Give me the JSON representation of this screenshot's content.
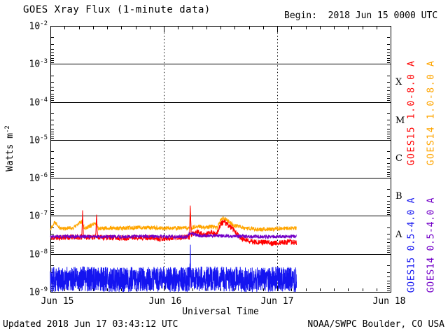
{
  "title": "GOES Xray Flux (1-minute data)",
  "begin_label": "Begin:  2018 Jun 15 0000 UTC",
  "footer": {
    "updated": "Updated 2018 Jun 17 03:43:12 UTC",
    "credit": "NOAA/SWPC Boulder, CO USA"
  },
  "chart_data": {
    "type": "line",
    "title": "GOES Xray Flux (1-minute data)",
    "xlabel": "Universal Time",
    "ylabel": {
      "text": "Watts m",
      "exponent": "-2"
    },
    "x_axis": {
      "range_days": [
        0,
        3
      ],
      "minor_tick_hours": 3,
      "ticks": [
        {
          "t": 0,
          "label": "Jun 15",
          "dx": 10
        },
        {
          "t": 1,
          "label": "Jun 16",
          "dx": 2
        },
        {
          "t": 2,
          "label": "Jun 17",
          "dx": 0
        },
        {
          "t": 3,
          "label": "Jun 18",
          "dx": -2
        }
      ],
      "gridline_ts": [
        1,
        2
      ]
    },
    "y_axis": {
      "log_range": [
        -9,
        -2
      ],
      "tick_exponents": [
        -2,
        -3,
        -4,
        -5,
        -6,
        -7,
        -8,
        -9
      ],
      "gridline_exponents": [
        -3,
        -4,
        -5,
        -6,
        -7,
        -8
      ]
    },
    "flare_classes": [
      {
        "label": "X",
        "upper_exp": -3
      },
      {
        "label": "M",
        "upper_exp": -4
      },
      {
        "label": "C",
        "upper_exp": -5
      },
      {
        "label": "B",
        "upper_exp": -6
      },
      {
        "label": "A",
        "upper_exp": -7
      }
    ],
    "series": [
      {
        "name": "GOES14 1.0-8.0 A",
        "key": "goes14-long",
        "color": "#ffa500",
        "seed": 22,
        "noise_log": 0.055,
        "samples": 1200,
        "t_end": 2.17,
        "envelope_log10": [
          [
            0,
            -7.35
          ],
          [
            0.04,
            -7.15
          ],
          [
            0.09,
            -7.33
          ],
          [
            0.2,
            -7.32
          ],
          [
            0.28,
            -7.14
          ],
          [
            0.3,
            -7.32
          ],
          [
            0.405,
            -7.2
          ],
          [
            0.42,
            -7.32
          ],
          [
            0.6,
            -7.33
          ],
          [
            0.8,
            -7.3
          ],
          [
            1.0,
            -7.33
          ],
          [
            1.15,
            -7.32
          ],
          [
            1.228,
            -7.32
          ],
          [
            1.233,
            -6.8
          ],
          [
            1.24,
            -7.32
          ],
          [
            1.3,
            -7.26
          ],
          [
            1.36,
            -7.32
          ],
          [
            1.42,
            -7.28
          ],
          [
            1.47,
            -7.32
          ],
          [
            1.5,
            -7.12
          ],
          [
            1.53,
            -7.05
          ],
          [
            1.62,
            -7.25
          ],
          [
            1.72,
            -7.33
          ],
          [
            1.9,
            -7.35
          ],
          [
            2.05,
            -7.33
          ],
          [
            2.17,
            -7.33
          ]
        ]
      },
      {
        "name": "GOES15 1.0-8.0 A",
        "key": "goes15-long",
        "color": "#ff0000",
        "seed": 11,
        "noise_log": 0.07,
        "samples": 1200,
        "t_end": 2.17,
        "envelope_log10": [
          [
            0,
            -7.58
          ],
          [
            0.2,
            -7.56
          ],
          [
            0.277,
            -7.56
          ],
          [
            0.284,
            -6.85
          ],
          [
            0.292,
            -7.56
          ],
          [
            0.4,
            -7.56
          ],
          [
            0.407,
            -6.9
          ],
          [
            0.415,
            -7.56
          ],
          [
            0.6,
            -7.58
          ],
          [
            0.8,
            -7.56
          ],
          [
            1.0,
            -7.6
          ],
          [
            1.15,
            -7.56
          ],
          [
            1.227,
            -7.56
          ],
          [
            1.233,
            -6.73
          ],
          [
            1.242,
            -7.5
          ],
          [
            1.3,
            -7.42
          ],
          [
            1.36,
            -7.52
          ],
          [
            1.42,
            -7.4
          ],
          [
            1.46,
            -7.52
          ],
          [
            1.5,
            -7.22
          ],
          [
            1.53,
            -7.15
          ],
          [
            1.6,
            -7.32
          ],
          [
            1.68,
            -7.6
          ],
          [
            1.78,
            -7.68
          ],
          [
            1.9,
            -7.7
          ],
          [
            2.0,
            -7.72
          ],
          [
            2.1,
            -7.68
          ],
          [
            2.17,
            -7.7
          ]
        ]
      },
      {
        "name": "GOES14 0.5-4.0 A",
        "key": "goes14-short",
        "color": "#7300c8",
        "seed": 33,
        "noise_log": 0.045,
        "samples": 1100,
        "t_end": 2.17,
        "envelope_log10": [
          [
            0,
            -7.55
          ],
          [
            0.3,
            -7.54
          ],
          [
            0.6,
            -7.55
          ],
          [
            0.9,
            -7.54
          ],
          [
            1.2,
            -7.55
          ],
          [
            1.233,
            -7.45
          ],
          [
            1.3,
            -7.52
          ],
          [
            1.6,
            -7.53
          ],
          [
            1.9,
            -7.55
          ],
          [
            2.17,
            -7.54
          ]
        ]
      },
      {
        "name": "GOES15 0.5-4.0 A",
        "key": "goes15-short",
        "color": "#1414f0",
        "seed": 44,
        "noise_log": 0.33,
        "samples": 1900,
        "t_end": 2.17,
        "envelope_log10": [
          [
            0,
            -8.68
          ],
          [
            0.3,
            -8.66
          ],
          [
            0.6,
            -8.68
          ],
          [
            0.9,
            -8.66
          ],
          [
            1.2,
            -8.68
          ],
          [
            1.229,
            -8.66
          ],
          [
            1.234,
            -7.95
          ],
          [
            1.239,
            -8.66
          ],
          [
            1.5,
            -8.66
          ],
          [
            1.8,
            -8.68
          ],
          [
            2.0,
            -8.66
          ],
          [
            2.17,
            -8.68
          ]
        ]
      }
    ],
    "legend": [
      {
        "label": "GOES15 1.0-8.0 A",
        "color": "#ff0000"
      },
      {
        "label": "GOES14 1.0-8.0 A",
        "color": "#ffa500"
      },
      {
        "label": "GOES15 0.5-4.0 A",
        "color": "#1414f0"
      },
      {
        "label": "GOES14 0.5-4.0 A",
        "color": "#7300c8"
      }
    ]
  }
}
